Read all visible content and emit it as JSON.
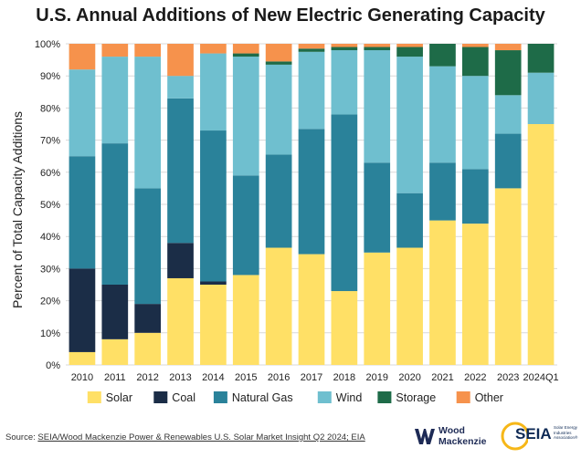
{
  "chart_data": {
    "type": "bar",
    "stacked": true,
    "title": "U.S. Annual Additions of New Electric Generating Capacity",
    "ylabel": "Percent of Total Capacity Additions",
    "xlabel": "",
    "ylim": [
      0,
      100
    ],
    "y_ticks": [
      "0%",
      "10%",
      "20%",
      "30%",
      "40%",
      "50%",
      "60%",
      "70%",
      "80%",
      "90%",
      "100%"
    ],
    "grid": true,
    "legend_position": "bottom",
    "categories": [
      "2010",
      "2011",
      "2012",
      "2013",
      "2014",
      "2015",
      "2016",
      "2017",
      "2018",
      "2019",
      "2020",
      "2021",
      "2022",
      "2023",
      "2024Q1"
    ],
    "series": [
      {
        "name": "Solar",
        "color": "#FFE066",
        "values": [
          4,
          8,
          10,
          27,
          25,
          28,
          36.5,
          34.5,
          23,
          35,
          36.5,
          45,
          44,
          55,
          75
        ]
      },
      {
        "name": "Coal",
        "color": "#1B2D47",
        "values": [
          26,
          17,
          9,
          11,
          1,
          0,
          0,
          0,
          0,
          0,
          0,
          0,
          0,
          0,
          0
        ]
      },
      {
        "name": "Natural Gas",
        "color": "#2A829A",
        "values": [
          35,
          44,
          36,
          45,
          47,
          31,
          29,
          39,
          55,
          28,
          17,
          18,
          17,
          17,
          0
        ]
      },
      {
        "name": "Wind",
        "color": "#6FBFCF",
        "values": [
          27,
          27,
          41,
          7,
          24,
          37,
          28,
          24,
          20,
          35,
          42.5,
          30,
          29,
          12,
          16
        ]
      },
      {
        "name": "Storage",
        "color": "#1E6B48",
        "values": [
          0,
          0,
          0,
          0,
          0,
          1,
          1,
          1,
          1,
          1,
          3,
          7,
          9,
          14,
          9
        ]
      },
      {
        "name": "Other",
        "color": "#F6924C",
        "values": [
          8,
          4,
          4,
          10,
          3,
          3,
          5.5,
          1.5,
          1,
          1,
          1,
          0,
          1,
          2,
          0
        ]
      }
    ]
  },
  "footer": {
    "source_prefix": "Source: ",
    "source_text": "SEIA/Wood Mackenzie Power & Renewables U.S. Solar Market Insight Q2 2024; EIA",
    "logo_wm_line1": "Wood",
    "logo_wm_line2": "Mackenzie",
    "logo_seia": "SEIA",
    "logo_seia_tagline": "Solar Energy Industries Association®"
  },
  "colors": {
    "grid": "#d9d9d9",
    "axis_text": "#222222",
    "wm_blue": "#1d2a55",
    "seia_yellow": "#f6b718"
  }
}
